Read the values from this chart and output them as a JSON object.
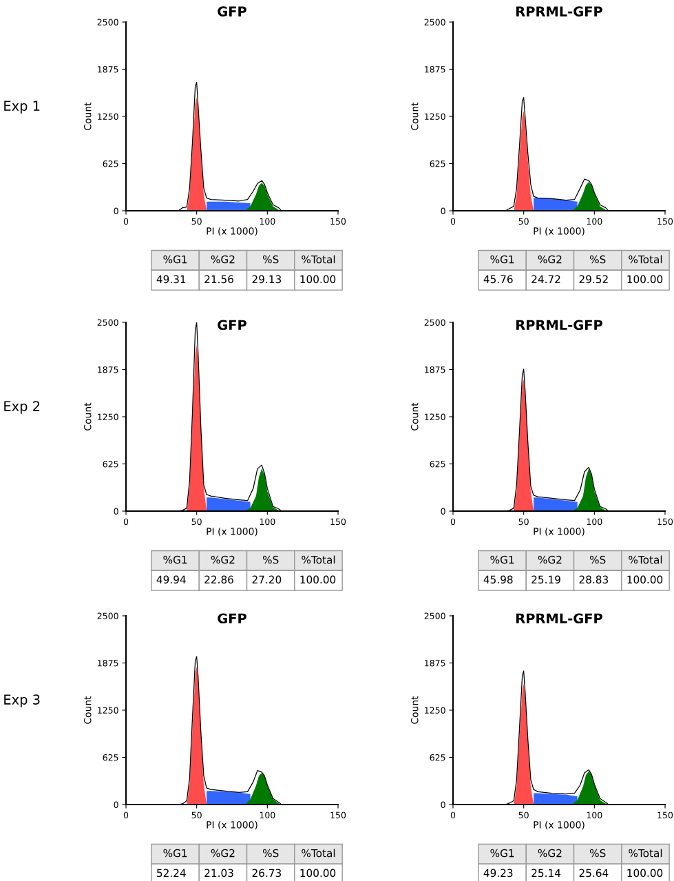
{
  "chart_data": [
    {
      "type": "area",
      "title": "GFP",
      "xlabel": "PI (x 1000)",
      "ylabel": "Count",
      "xlim": [
        0,
        150
      ],
      "ylim": [
        0,
        2500
      ],
      "xticks": [
        0,
        50,
        100,
        150
      ],
      "yticks": [
        0,
        625,
        1250,
        1875,
        2500
      ],
      "annotations": [
        "%G1",
        "%G2",
        "%S",
        "%Total",
        "49.31",
        "21.56",
        "29.13",
        "100.00",
        "Exp 1"
      ],
      "series": [
        {
          "color": "#3366ff",
          "x": [
            57,
            60,
            70,
            80,
            88
          ],
          "values": [
            120,
            120,
            120,
            110,
            100
          ]
        },
        {
          "type": "area",
          "color": "#ff4c4c",
          "x": [
            43,
            45,
            47,
            49,
            50,
            51,
            53,
            55,
            57
          ],
          "values": [
            0,
            220,
            820,
            1420,
            1500,
            1350,
            750,
            220,
            0
          ]
        },
        {
          "type": "area",
          "color": "#007a00",
          "x": [
            84,
            88,
            92,
            94,
            96,
            98,
            100,
            104,
            109
          ],
          "values": [
            0,
            60,
            220,
            330,
            370,
            330,
            220,
            60,
            0
          ]
        },
        {
          "type": "line",
          "color": "#000000",
          "x": [
            37,
            40,
            43,
            45,
            47,
            49,
            50,
            51,
            53,
            55,
            57,
            60,
            70,
            80,
            86,
            90,
            93,
            96,
            98,
            100,
            104,
            108,
            110
          ],
          "values": [
            0,
            40,
            50,
            300,
            900,
            1650,
            1700,
            1400,
            800,
            300,
            170,
            150,
            140,
            130,
            150,
            260,
            360,
            400,
            350,
            240,
            80,
            40,
            0
          ]
        }
      ]
    },
    {
      "type": "area",
      "title": "RPRML-GFP",
      "xlabel": "PI (x 1000)",
      "ylabel": "Count",
      "xlim": [
        0,
        150
      ],
      "ylim": [
        0,
        2500
      ],
      "xticks": [
        0,
        50,
        100,
        150
      ],
      "yticks": [
        0,
        625,
        1250,
        1875,
        2500
      ],
      "annotations": [
        "%G1",
        "%G2",
        "%S",
        "%Total",
        "45.76",
        "24.72",
        "29.52",
        "100.00"
      ],
      "series": [
        {
          "color": "#3366ff",
          "x": [
            57,
            60,
            70,
            80,
            88
          ],
          "values": [
            170,
            170,
            160,
            140,
            120
          ]
        },
        {
          "type": "area",
          "color": "#ff4c4c",
          "x": [
            43,
            45,
            47,
            49,
            50,
            51,
            53,
            55,
            57
          ],
          "values": [
            0,
            200,
            730,
            1250,
            1320,
            1180,
            660,
            200,
            0
          ]
        },
        {
          "type": "area",
          "color": "#007a00",
          "x": [
            84,
            88,
            92,
            94,
            96,
            98,
            100,
            104,
            109
          ],
          "values": [
            0,
            60,
            230,
            340,
            380,
            340,
            230,
            60,
            0
          ]
        },
        {
          "type": "line",
          "color": "#000000",
          "x": [
            37,
            40,
            43,
            45,
            47,
            49,
            50,
            51,
            53,
            55,
            57,
            60,
            70,
            80,
            86,
            90,
            93,
            96,
            98,
            100,
            104,
            108,
            110
          ],
          "values": [
            0,
            30,
            60,
            300,
            850,
            1450,
            1500,
            1250,
            750,
            350,
            190,
            170,
            160,
            140,
            150,
            300,
            420,
            400,
            350,
            240,
            80,
            40,
            0
          ]
        }
      ]
    },
    {
      "type": "area",
      "title": "GFP",
      "xlabel": "PI (x 1000)",
      "ylabel": "Count",
      "xlim": [
        0,
        150
      ],
      "ylim": [
        0,
        2500
      ],
      "xticks": [
        0,
        50,
        100,
        150
      ],
      "yticks": [
        0,
        625,
        1250,
        1875,
        2500
      ],
      "annotations": [
        "%G1",
        "%G2",
        "%S",
        "%Total",
        "49.94",
        "22.86",
        "27.20",
        "100.00",
        "Exp 2"
      ],
      "series": [
        {
          "color": "#3366ff",
          "x": [
            57,
            60,
            70,
            80,
            88
          ],
          "values": [
            180,
            180,
            160,
            140,
            120
          ]
        },
        {
          "type": "area",
          "color": "#ff4c4c",
          "x": [
            43,
            45,
            47,
            49,
            50,
            51,
            53,
            55,
            57
          ],
          "values": [
            0,
            320,
            1200,
            2080,
            2200,
            1980,
            1100,
            320,
            0
          ]
        },
        {
          "type": "area",
          "color": "#007a00",
          "x": [
            84,
            88,
            92,
            94,
            96,
            98,
            100,
            104,
            109
          ],
          "values": [
            0,
            40,
            200,
            450,
            560,
            480,
            260,
            50,
            0
          ]
        },
        {
          "type": "line",
          "color": "#000000",
          "x": [
            37,
            40,
            43,
            45,
            47,
            49,
            50,
            51,
            53,
            55,
            57,
            60,
            70,
            80,
            86,
            90,
            93,
            96,
            98,
            100,
            104,
            108,
            110
          ],
          "values": [
            0,
            10,
            40,
            400,
            1300,
            2400,
            2500,
            2100,
            1100,
            350,
            220,
            200,
            170,
            150,
            140,
            300,
            560,
            610,
            500,
            300,
            60,
            30,
            0
          ]
        }
      ]
    },
    {
      "type": "area",
      "title": "RPRML-GFP",
      "xlabel": "PI (x 1000)",
      "ylabel": "Count",
      "xlim": [
        0,
        150
      ],
      "ylim": [
        0,
        2500
      ],
      "xticks": [
        0,
        50,
        100,
        150
      ],
      "yticks": [
        0,
        625,
        1250,
        1875,
        2500
      ],
      "annotations": [
        "%G1",
        "%G2",
        "%S",
        "%Total",
        "45.98",
        "25.19",
        "28.83",
        "100.00"
      ],
      "series": [
        {
          "color": "#3366ff",
          "x": [
            57,
            60,
            70,
            80,
            88
          ],
          "values": [
            180,
            180,
            160,
            140,
            120
          ]
        },
        {
          "type": "area",
          "color": "#ff4c4c",
          "x": [
            43,
            45,
            47,
            49,
            50,
            51,
            53,
            55,
            57
          ],
          "values": [
            0,
            260,
            960,
            1660,
            1750,
            1570,
            870,
            260,
            0
          ]
        },
        {
          "type": "area",
          "color": "#007a00",
          "x": [
            84,
            88,
            92,
            94,
            96,
            98,
            100,
            104,
            109
          ],
          "values": [
            0,
            40,
            200,
            450,
            560,
            480,
            260,
            50,
            0
          ]
        },
        {
          "type": "line",
          "color": "#000000",
          "x": [
            37,
            40,
            43,
            45,
            47,
            49,
            50,
            51,
            53,
            55,
            57,
            60,
            70,
            80,
            86,
            90,
            93,
            96,
            98,
            100,
            104,
            108,
            110
          ],
          "values": [
            0,
            10,
            40,
            350,
            1050,
            1800,
            1880,
            1600,
            900,
            330,
            210,
            190,
            170,
            150,
            140,
            280,
            520,
            580,
            490,
            290,
            60,
            30,
            0
          ]
        }
      ]
    },
    {
      "type": "area",
      "title": "GFP",
      "xlabel": "PI (x 1000)",
      "ylabel": "Count",
      "xlim": [
        0,
        150
      ],
      "ylim": [
        0,
        2500
      ],
      "xticks": [
        0,
        50,
        100,
        150
      ],
      "yticks": [
        0,
        625,
        1250,
        1875,
        2500
      ],
      "annotations": [
        "%G1",
        "%G2",
        "%S",
        "%Total",
        "52.24",
        "21.03",
        "26.73",
        "100.00",
        "Exp 3"
      ],
      "series": [
        {
          "color": "#3366ff",
          "x": [
            57,
            60,
            70,
            80,
            88
          ],
          "values": [
            180,
            180,
            170,
            160,
            140
          ]
        },
        {
          "type": "area",
          "color": "#ff4c4c",
          "x": [
            43,
            45,
            47,
            49,
            50,
            51,
            53,
            55,
            57
          ],
          "values": [
            0,
            270,
            1000,
            1730,
            1830,
            1650,
            920,
            270,
            0
          ]
        },
        {
          "type": "area",
          "color": "#007a00",
          "x": [
            84,
            88,
            92,
            94,
            96,
            98,
            100,
            104,
            109
          ],
          "values": [
            0,
            70,
            250,
            380,
            420,
            380,
            250,
            70,
            0
          ]
        },
        {
          "type": "line",
          "color": "#000000",
          "x": [
            37,
            40,
            43,
            45,
            47,
            49,
            50,
            51,
            53,
            55,
            57,
            60,
            70,
            80,
            86,
            90,
            93,
            96,
            98,
            100,
            104,
            108,
            110
          ],
          "values": [
            0,
            10,
            50,
            350,
            1150,
            1900,
            1960,
            1700,
            950,
            380,
            220,
            200,
            180,
            160,
            170,
            300,
            450,
            430,
            380,
            260,
            80,
            30,
            0
          ]
        }
      ]
    },
    {
      "type": "area",
      "title": "RPRML-GFP",
      "xlabel": "PI (x 1000)",
      "ylabel": "Count",
      "xlim": [
        0,
        150
      ],
      "ylim": [
        0,
        2500
      ],
      "xticks": [
        0,
        50,
        100,
        150
      ],
      "yticks": [
        0,
        625,
        1250,
        1875,
        2500
      ],
      "annotations": [
        "%G1",
        "%G2",
        "%S",
        "%Total",
        "49.23",
        "25.14",
        "25.64",
        "100.00"
      ],
      "series": [
        {
          "color": "#3366ff",
          "x": [
            57,
            60,
            70,
            80,
            88
          ],
          "values": [
            150,
            150,
            140,
            130,
            110
          ]
        },
        {
          "type": "area",
          "color": "#ff4c4c",
          "x": [
            43,
            45,
            47,
            49,
            50,
            51,
            53,
            55,
            57
          ],
          "values": [
            0,
            240,
            880,
            1510,
            1600,
            1440,
            800,
            240,
            0
          ]
        },
        {
          "type": "area",
          "color": "#007a00",
          "x": [
            84,
            88,
            92,
            94,
            96,
            98,
            100,
            104,
            109
          ],
          "values": [
            0,
            60,
            240,
            390,
            440,
            400,
            260,
            60,
            0
          ]
        },
        {
          "type": "line",
          "color": "#000000",
          "x": [
            37,
            40,
            43,
            45,
            47,
            49,
            50,
            51,
            53,
            55,
            57,
            60,
            70,
            80,
            86,
            90,
            93,
            96,
            98,
            100,
            104,
            108,
            110
          ],
          "values": [
            0,
            20,
            50,
            330,
            1000,
            1700,
            1770,
            1500,
            850,
            330,
            200,
            170,
            150,
            140,
            150,
            260,
            420,
            460,
            400,
            270,
            80,
            30,
            0
          ]
        }
      ]
    }
  ]
}
